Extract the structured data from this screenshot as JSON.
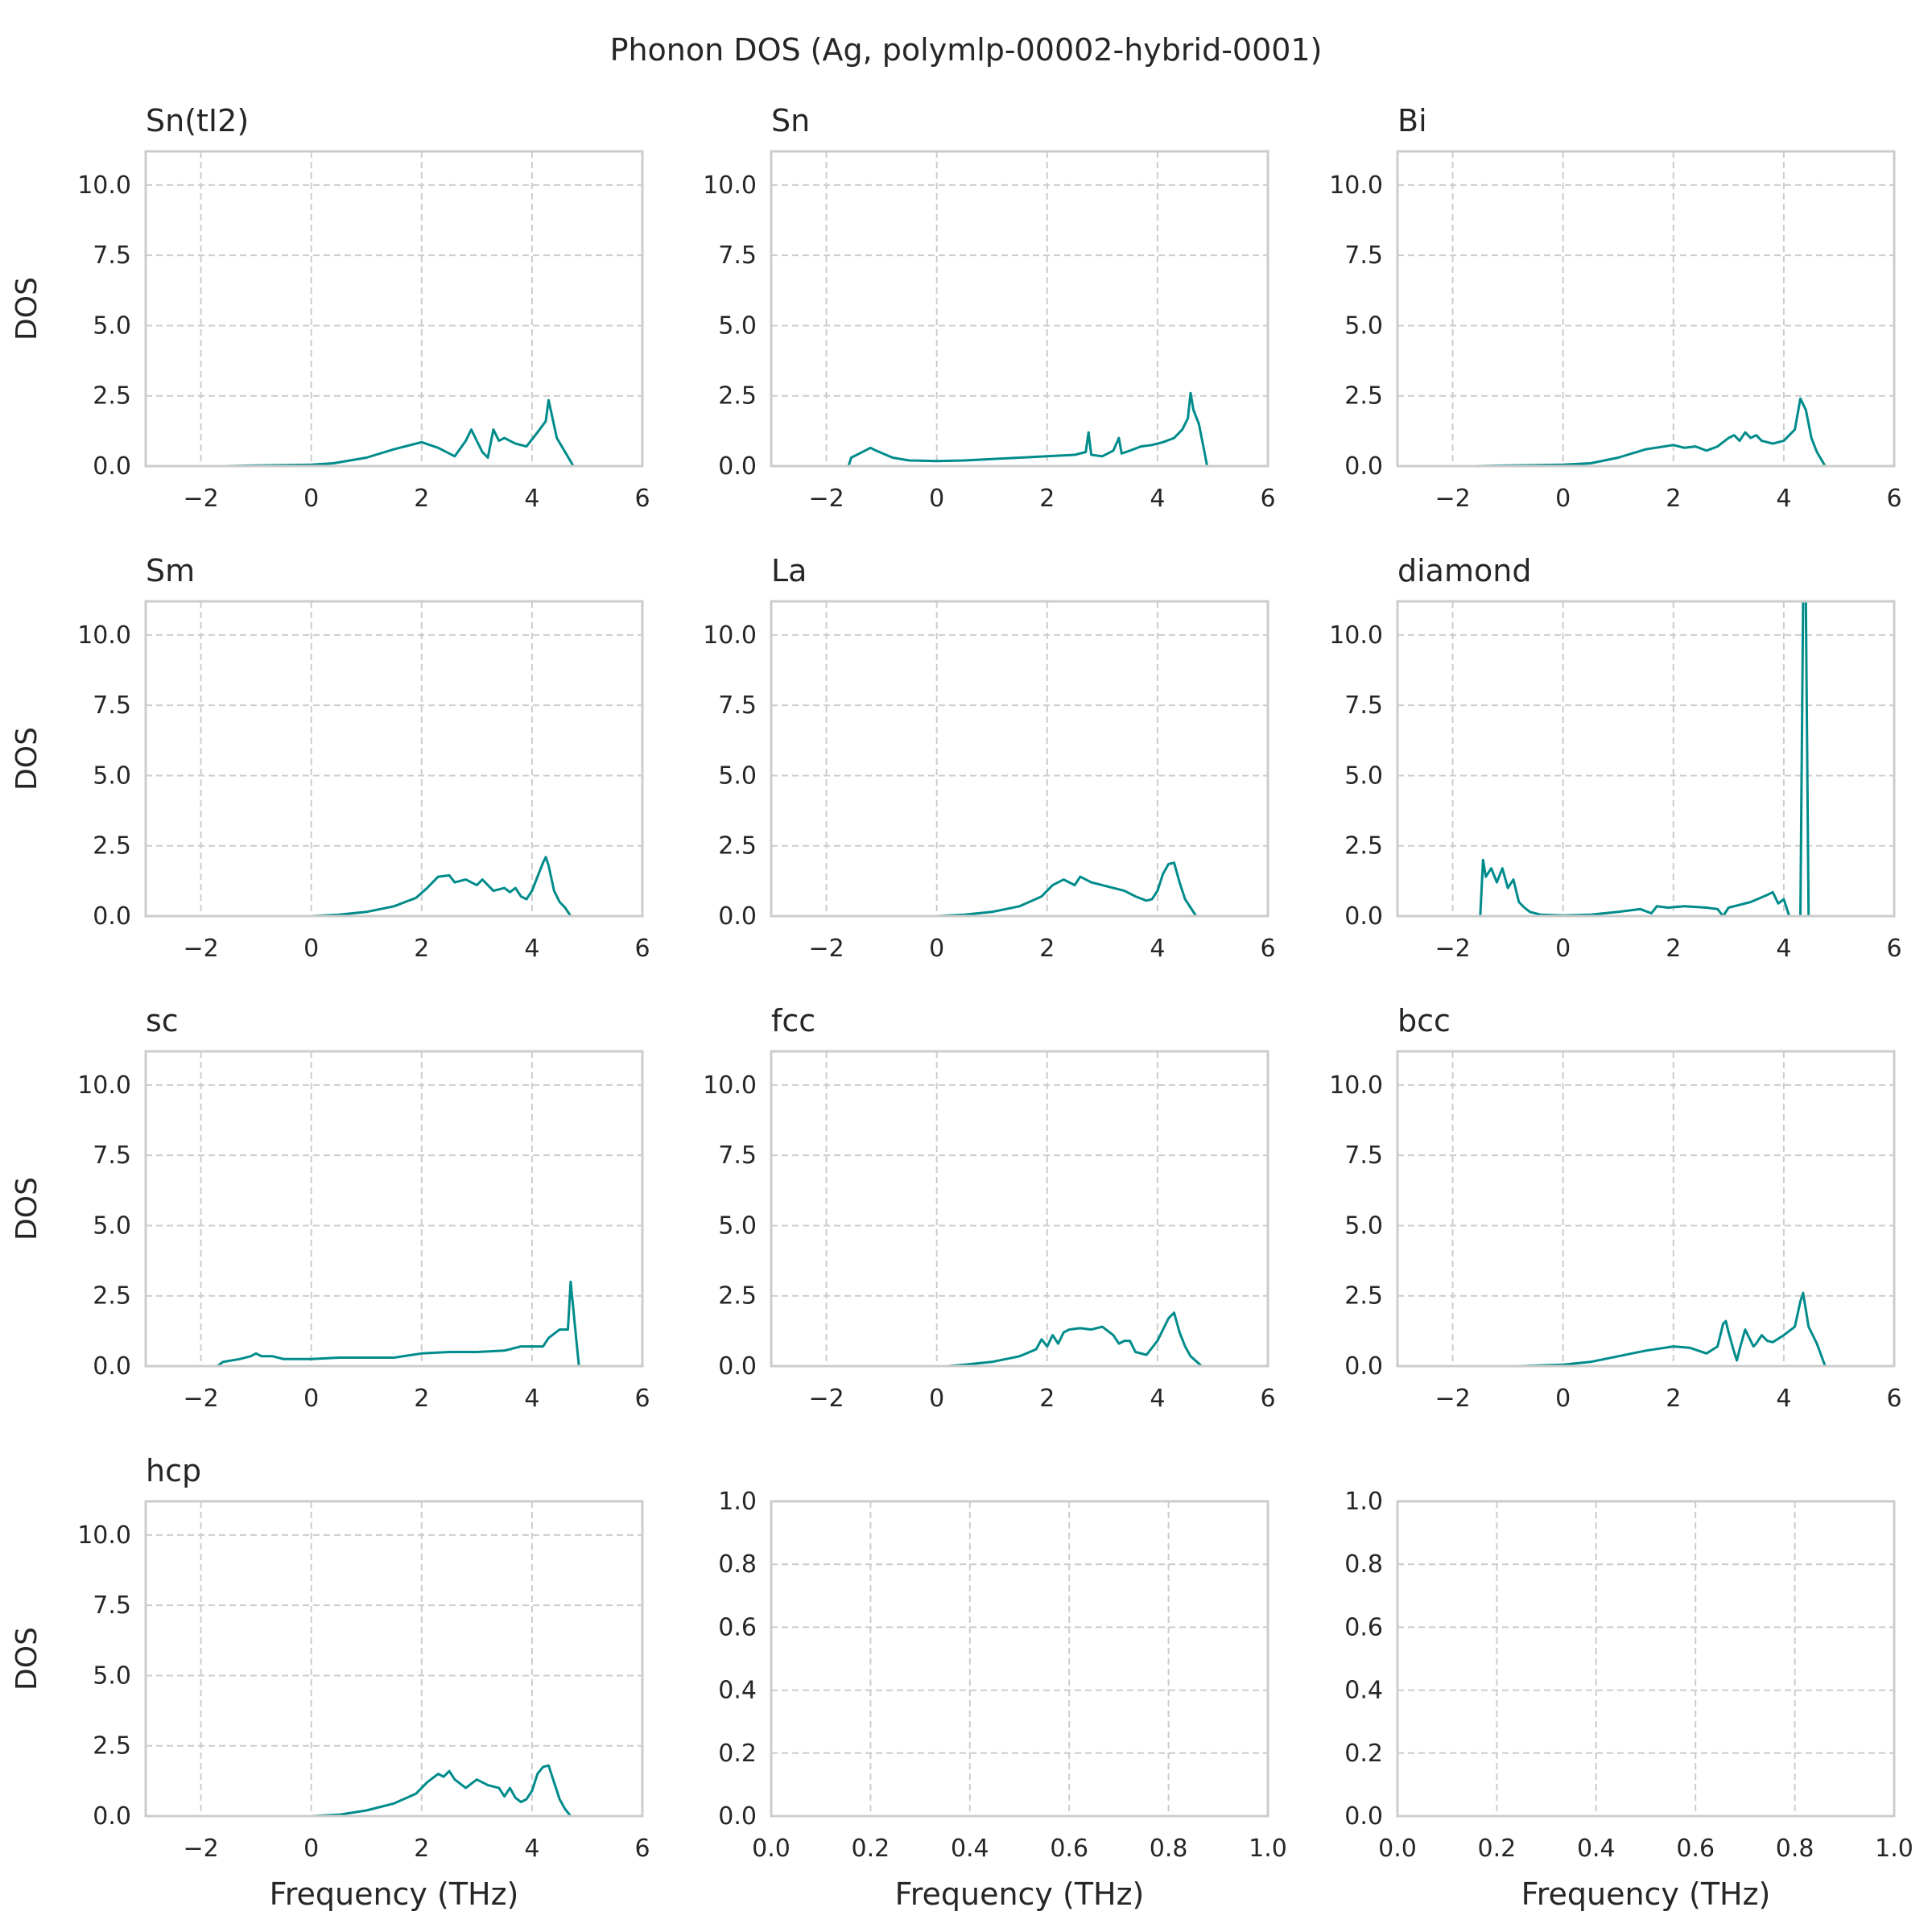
{
  "figure": {
    "title": "Phonon DOS (Ag, polymlp-00002-hybrid-0001)",
    "line_color": "#008b8b",
    "grid_color": "#cccccc",
    "spine_color": "#cccccc",
    "xlabel": "Frequency (THz)",
    "ylabel": "DOS"
  },
  "chart_data": [
    {
      "type": "line",
      "title": "Sn(tI2)",
      "ylabel": "DOS",
      "xlabel": "",
      "xlim": [
        -3,
        6
      ],
      "ylim": [
        0,
        11.2
      ],
      "xticks": [
        -2,
        0,
        2,
        4,
        6
      ],
      "yticks": [
        0.0,
        2.5,
        5.0,
        7.5,
        10.0
      ],
      "grid": true,
      "series": [
        {
          "x": [
            -1.6,
            -1.0,
            0.0,
            0.4,
            1.0,
            1.5,
            2.0,
            2.3,
            2.6,
            2.8,
            2.9,
            3.0,
            3.1,
            3.2,
            3.3,
            3.4,
            3.5,
            3.7,
            3.9,
            4.1,
            4.25,
            4.3,
            4.35,
            4.45,
            4.6,
            4.75,
            5.3
          ],
          "y": [
            0.0,
            0.02,
            0.05,
            0.1,
            0.3,
            0.6,
            0.85,
            0.65,
            0.35,
            0.9,
            1.3,
            0.9,
            0.5,
            0.3,
            1.3,
            0.9,
            1.0,
            0.8,
            0.7,
            1.2,
            1.6,
            2.35,
            1.9,
            1.0,
            0.5,
            0.0,
            0.0
          ]
        }
      ]
    },
    {
      "type": "line",
      "title": "Sn",
      "ylabel": "",
      "xlabel": "",
      "xlim": [
        -3,
        6
      ],
      "ylim": [
        0,
        11.2
      ],
      "xticks": [
        -2,
        0,
        2,
        4,
        6
      ],
      "yticks": [
        0.0,
        2.5,
        5.0,
        7.5,
        10.0
      ],
      "grid": true,
      "series": [
        {
          "x": [
            -1.6,
            -1.55,
            -1.4,
            -1.2,
            -1.1,
            -0.8,
            -0.5,
            0.0,
            0.5,
            1.0,
            1.5,
            2.0,
            2.5,
            2.7,
            2.75,
            2.8,
            3.0,
            3.2,
            3.3,
            3.35,
            3.5,
            3.7,
            3.9,
            4.1,
            4.3,
            4.45,
            4.55,
            4.6,
            4.65,
            4.75,
            4.85,
            4.9,
            5.5
          ],
          "y": [
            0.0,
            0.3,
            0.45,
            0.65,
            0.55,
            0.3,
            0.2,
            0.18,
            0.2,
            0.25,
            0.3,
            0.35,
            0.4,
            0.5,
            1.2,
            0.4,
            0.35,
            0.55,
            1.0,
            0.45,
            0.55,
            0.7,
            0.75,
            0.85,
            1.0,
            1.3,
            1.7,
            2.6,
            2.0,
            1.5,
            0.5,
            0.0,
            0.0
          ]
        }
      ]
    },
    {
      "type": "line",
      "title": "Bi",
      "ylabel": "",
      "xlabel": "",
      "xlim": [
        -3,
        6
      ],
      "ylim": [
        0,
        11.2
      ],
      "xticks": [
        -2,
        0,
        2,
        4,
        6
      ],
      "yticks": [
        0.0,
        2.5,
        5.0,
        7.5,
        10.0
      ],
      "grid": true,
      "series": [
        {
          "x": [
            -1.6,
            -1.0,
            0.0,
            0.5,
            1.0,
            1.5,
            2.0,
            2.2,
            2.4,
            2.6,
            2.8,
            3.0,
            3.1,
            3.2,
            3.3,
            3.4,
            3.5,
            3.6,
            3.8,
            4.0,
            4.2,
            4.3,
            4.4,
            4.5,
            4.6,
            4.75,
            5.3
          ],
          "y": [
            0.0,
            0.02,
            0.05,
            0.1,
            0.3,
            0.6,
            0.75,
            0.65,
            0.7,
            0.55,
            0.7,
            1.0,
            1.1,
            0.9,
            1.2,
            1.0,
            1.1,
            0.9,
            0.8,
            0.9,
            1.3,
            2.4,
            2.0,
            1.0,
            0.5,
            0.0,
            0.0
          ]
        }
      ]
    },
    {
      "type": "line",
      "title": "Sm",
      "ylabel": "DOS",
      "xlabel": "",
      "xlim": [
        -3,
        6
      ],
      "ylim": [
        0,
        11.2
      ],
      "xticks": [
        -2,
        0,
        2,
        4,
        6
      ],
      "yticks": [
        0.0,
        2.5,
        5.0,
        7.5,
        10.0
      ],
      "grid": true,
      "series": [
        {
          "x": [
            0.0,
            0.5,
            1.0,
            1.5,
            1.9,
            2.1,
            2.3,
            2.5,
            2.6,
            2.8,
            3.0,
            3.1,
            3.3,
            3.5,
            3.6,
            3.7,
            3.8,
            3.9,
            4.0,
            4.1,
            4.2,
            4.25,
            4.3,
            4.4,
            4.5,
            4.6,
            4.7,
            5.0
          ],
          "y": [
            0.0,
            0.05,
            0.15,
            0.35,
            0.65,
            1.0,
            1.4,
            1.45,
            1.2,
            1.3,
            1.1,
            1.3,
            0.9,
            1.0,
            0.85,
            1.0,
            0.7,
            0.6,
            0.9,
            1.4,
            1.9,
            2.1,
            1.8,
            0.9,
            0.5,
            0.3,
            0.0,
            0.0
          ]
        }
      ]
    },
    {
      "type": "line",
      "title": "La",
      "ylabel": "",
      "xlabel": "",
      "xlim": [
        -3,
        6
      ],
      "ylim": [
        0,
        11.2
      ],
      "xticks": [
        -2,
        0,
        2,
        4,
        6
      ],
      "yticks": [
        0.0,
        2.5,
        5.0,
        7.5,
        10.0
      ],
      "grid": true,
      "series": [
        {
          "x": [
            0.0,
            0.5,
            1.0,
            1.5,
            1.9,
            2.1,
            2.3,
            2.5,
            2.6,
            2.8,
            3.0,
            3.2,
            3.4,
            3.6,
            3.8,
            3.9,
            4.0,
            4.1,
            4.2,
            4.3,
            4.4,
            4.5,
            4.6,
            4.7,
            5.0
          ],
          "y": [
            0.0,
            0.05,
            0.15,
            0.35,
            0.7,
            1.1,
            1.3,
            1.1,
            1.4,
            1.2,
            1.1,
            1.0,
            0.9,
            0.7,
            0.55,
            0.6,
            0.9,
            1.5,
            1.85,
            1.9,
            1.2,
            0.6,
            0.3,
            0.0,
            0.0
          ]
        }
      ]
    },
    {
      "type": "line",
      "title": "diamond",
      "ylabel": "",
      "xlabel": "",
      "xlim": [
        -3,
        6
      ],
      "ylim": [
        0,
        11.2
      ],
      "xticks": [
        -2,
        0,
        2,
        4,
        6
      ],
      "yticks": [
        0.0,
        2.5,
        5.0,
        7.5,
        10.0
      ],
      "grid": true,
      "series": [
        {
          "x": [
            -1.5,
            -1.45,
            -1.4,
            -1.3,
            -1.2,
            -1.1,
            -1.0,
            -0.9,
            -0.8,
            -0.7,
            -0.6,
            -0.4,
            0.0,
            0.5,
            1.0,
            1.4,
            1.6,
            1.7,
            1.9,
            2.2,
            2.6,
            2.8,
            2.9,
            3.0,
            3.4,
            3.7,
            3.8,
            3.9,
            4.0,
            4.1,
            4.2,
            4.3,
            4.35,
            4.4,
            4.45,
            5.0
          ],
          "y": [
            0.0,
            2.0,
            1.4,
            1.7,
            1.2,
            1.7,
            1.0,
            1.3,
            0.5,
            0.3,
            0.15,
            0.05,
            0.02,
            0.05,
            0.15,
            0.25,
            0.1,
            0.35,
            0.3,
            0.35,
            0.3,
            0.25,
            0.0,
            0.3,
            0.5,
            0.75,
            0.85,
            0.45,
            0.6,
            0.0,
            0.0,
            0.0,
            11.2,
            11.2,
            0.0,
            0.0
          ]
        }
      ]
    },
    {
      "type": "line",
      "title": "sc",
      "ylabel": "DOS",
      "xlabel": "",
      "xlim": [
        -3,
        6
      ],
      "ylim": [
        0,
        11.2
      ],
      "xticks": [
        -2,
        0,
        2,
        4,
        6
      ],
      "yticks": [
        0.0,
        2.5,
        5.0,
        7.5,
        10.0
      ],
      "grid": true,
      "series": [
        {
          "x": [
            -1.7,
            -1.6,
            -1.3,
            -1.1,
            -1.0,
            -0.9,
            -0.7,
            -0.5,
            0.0,
            0.5,
            1.0,
            1.5,
            2.0,
            2.5,
            3.0,
            3.5,
            3.8,
            4.0,
            4.2,
            4.3,
            4.5,
            4.6,
            4.65,
            4.7,
            4.8,
            4.85,
            5.5
          ],
          "y": [
            0.0,
            0.15,
            0.25,
            0.35,
            0.45,
            0.35,
            0.35,
            0.25,
            0.25,
            0.3,
            0.3,
            0.3,
            0.45,
            0.5,
            0.5,
            0.55,
            0.7,
            0.7,
            0.7,
            1.0,
            1.3,
            1.3,
            1.3,
            3.0,
            1.0,
            0.0,
            0.0
          ]
        }
      ]
    },
    {
      "type": "line",
      "title": "fcc",
      "ylabel": "",
      "xlabel": "",
      "xlim": [
        -3,
        6
      ],
      "ylim": [
        0,
        11.2
      ],
      "xticks": [
        -2,
        0,
        2,
        4,
        6
      ],
      "yticks": [
        0.0,
        2.5,
        5.0,
        7.5,
        10.0
      ],
      "grid": true,
      "series": [
        {
          "x": [
            0.2,
            0.5,
            1.0,
            1.5,
            1.8,
            1.9,
            2.0,
            2.1,
            2.2,
            2.3,
            2.4,
            2.6,
            2.8,
            3.0,
            3.2,
            3.3,
            3.4,
            3.5,
            3.6,
            3.8,
            4.0,
            4.1,
            4.2,
            4.3,
            4.4,
            4.5,
            4.6,
            4.8,
            5.0
          ],
          "y": [
            0.0,
            0.05,
            0.15,
            0.35,
            0.6,
            0.95,
            0.7,
            1.1,
            0.8,
            1.2,
            1.3,
            1.35,
            1.3,
            1.4,
            1.1,
            0.8,
            0.9,
            0.9,
            0.5,
            0.4,
            0.9,
            1.3,
            1.7,
            1.9,
            1.2,
            0.7,
            0.35,
            0.0,
            0.0
          ]
        }
      ]
    },
    {
      "type": "line",
      "title": "bcc",
      "ylabel": "",
      "xlabel": "",
      "xlim": [
        -3,
        6
      ],
      "ylim": [
        0,
        11.2
      ],
      "xticks": [
        -2,
        0,
        2,
        4,
        6
      ],
      "yticks": [
        0.0,
        2.5,
        5.0,
        7.5,
        10.0
      ],
      "grid": true,
      "series": [
        {
          "x": [
            -0.8,
            0.0,
            0.5,
            1.0,
            1.5,
            2.0,
            2.3,
            2.6,
            2.8,
            2.9,
            2.95,
            3.0,
            3.1,
            3.15,
            3.2,
            3.3,
            3.35,
            3.45,
            3.5,
            3.6,
            3.7,
            3.8,
            4.0,
            4.2,
            4.3,
            4.35,
            4.45,
            4.6,
            4.75,
            5.3
          ],
          "y": [
            0.0,
            0.05,
            0.15,
            0.35,
            0.55,
            0.7,
            0.65,
            0.45,
            0.7,
            1.5,
            1.6,
            1.2,
            0.5,
            0.2,
            0.6,
            1.3,
            1.1,
            0.7,
            0.8,
            1.1,
            0.9,
            0.85,
            1.1,
            1.4,
            2.3,
            2.6,
            1.4,
            0.8,
            0.0,
            0.0
          ]
        }
      ]
    },
    {
      "type": "line",
      "title": "hcp",
      "ylabel": "DOS",
      "xlabel": "Frequency (THz)",
      "xlim": [
        -3,
        6
      ],
      "ylim": [
        0,
        11.2
      ],
      "xticks": [
        -2,
        0,
        2,
        4,
        6
      ],
      "yticks": [
        0.0,
        2.5,
        5.0,
        7.5,
        10.0
      ],
      "grid": true,
      "series": [
        {
          "x": [
            0.0,
            0.5,
            1.0,
            1.5,
            1.9,
            2.1,
            2.3,
            2.4,
            2.5,
            2.6,
            2.8,
            3.0,
            3.2,
            3.4,
            3.5,
            3.6,
            3.7,
            3.8,
            3.9,
            4.0,
            4.1,
            4.2,
            4.3,
            4.4,
            4.5,
            4.6,
            4.7,
            5.0
          ],
          "y": [
            0.0,
            0.05,
            0.2,
            0.45,
            0.8,
            1.2,
            1.5,
            1.4,
            1.6,
            1.3,
            1.0,
            1.3,
            1.1,
            1.0,
            0.7,
            1.0,
            0.65,
            0.5,
            0.6,
            0.9,
            1.5,
            1.75,
            1.8,
            1.2,
            0.6,
            0.25,
            0.0,
            0.0
          ]
        }
      ]
    },
    {
      "type": "line",
      "title": "",
      "ylabel": "",
      "xlabel": "Frequency (THz)",
      "xlim": [
        0,
        1
      ],
      "ylim": [
        0,
        1
      ],
      "xticks": [
        0.0,
        0.2,
        0.4,
        0.6,
        0.8,
        1.0
      ],
      "yticks": [
        0.0,
        0.2,
        0.4,
        0.6,
        0.8,
        1.0
      ],
      "grid": true,
      "series": []
    },
    {
      "type": "line",
      "title": "",
      "ylabel": "",
      "xlabel": "Frequency (THz)",
      "xlim": [
        0,
        1
      ],
      "ylim": [
        0,
        1
      ],
      "xticks": [
        0.0,
        0.2,
        0.4,
        0.6,
        0.8,
        1.0
      ],
      "yticks": [
        0.0,
        0.2,
        0.4,
        0.6,
        0.8,
        1.0
      ],
      "grid": true,
      "series": []
    }
  ]
}
